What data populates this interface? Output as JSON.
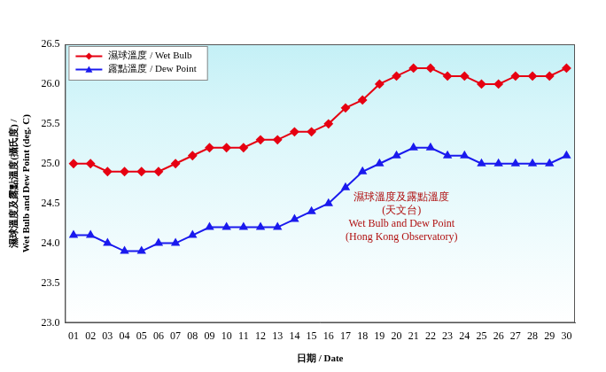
{
  "chart_data": {
    "type": "line",
    "x_label": "日期 / Date",
    "y_label": [
      "濕球溫度及露點溫度(攝氏度) /",
      "Wet Bulb and Dew Point (deg. C)"
    ],
    "annotations": [
      "濕球溫度及露點溫度",
      "(天文台)",
      "Wet Bulb and Dew Point",
      "(Hong Kong Observatory)"
    ],
    "categories": [
      "01",
      "02",
      "03",
      "04",
      "05",
      "06",
      "07",
      "08",
      "09",
      "10",
      "11",
      "12",
      "13",
      "14",
      "15",
      "16",
      "17",
      "18",
      "19",
      "20",
      "21",
      "22",
      "23",
      "24",
      "25",
      "26",
      "27",
      "28",
      "29",
      "30"
    ],
    "series": [
      {
        "name": "濕球溫度 / Wet Bulb",
        "color": "#e60012",
        "marker": "diamond",
        "values": [
          25.0,
          25.0,
          24.9,
          24.9,
          24.9,
          24.9,
          25.0,
          25.1,
          25.2,
          25.2,
          25.2,
          25.3,
          25.3,
          25.4,
          25.4,
          25.5,
          25.7,
          25.8,
          26.0,
          26.1,
          26.2,
          26.2,
          26.1,
          26.1,
          26.0,
          26.0,
          26.1,
          26.1,
          26.1,
          26.2
        ]
      },
      {
        "name": "露點溫度 / Dew Point",
        "color": "#1a1aee",
        "marker": "triangle",
        "values": [
          24.1,
          24.1,
          24.0,
          23.9,
          23.9,
          24.0,
          24.0,
          24.1,
          24.2,
          24.2,
          24.2,
          24.2,
          24.2,
          24.3,
          24.4,
          24.5,
          24.7,
          24.9,
          25.0,
          25.1,
          25.2,
          25.2,
          25.1,
          25.1,
          25.0,
          25.0,
          25.0,
          25.0,
          25.0,
          25.1
        ]
      }
    ],
    "ylim": [
      23,
      26.5
    ],
    "yticks": [
      {
        "value": 23,
        "label": "23.0"
      },
      23.5,
      {
        "value": 24,
        "label": "24.0"
      },
      24.5,
      {
        "value": 25,
        "label": "25.0"
      },
      25.5,
      {
        "value": 26,
        "label": "26.0"
      },
      26.5
    ],
    "grid": false,
    "legend": "top-left"
  }
}
